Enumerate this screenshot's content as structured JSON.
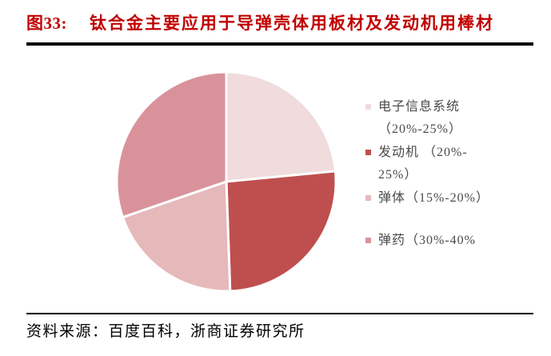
{
  "header": {
    "figure_label": "图33:",
    "title": "钛合金主要应用于导弹壳体用板材及发动机用棒材",
    "title_color": "#C00000"
  },
  "chart_data": {
    "type": "pie",
    "title": "钛合金主要应用于导弹壳体用板材及发动机用棒材",
    "legend_position": "right",
    "slices": [
      {
        "id": "electronic-info-system",
        "label": "电子信息系统",
        "share_range": "20%-25%",
        "start_angle": 0,
        "end_angle": 84.5,
        "color": "#F0DBDD"
      },
      {
        "id": "engine",
        "label": "发动机",
        "share_range": "20%-25%",
        "start_angle": 84.5,
        "end_angle": 178,
        "color": "#BF4F4F"
      },
      {
        "id": "missile-body",
        "label": "弹体",
        "share_range": "15%-20%",
        "start_angle": 178,
        "end_angle": 251,
        "color": "#E5B8BA"
      },
      {
        "id": "ammunition",
        "label": "弹药",
        "share_range": "30%-40%",
        "start_angle": 251,
        "end_angle": 360,
        "color": "#D9929A"
      }
    ]
  },
  "legend": {
    "items": [
      {
        "lines": [
          "电子信息系统",
          "（20%-25%）"
        ]
      },
      {
        "lines": [
          "发动机 （20%-",
          "25%）"
        ]
      },
      {
        "lines": [
          "弹体（15%-20%）"
        ]
      },
      {
        "lines": [
          "弹药（30%-40%"
        ]
      }
    ]
  },
  "footer": {
    "source_label": "资料来源：",
    "source_text": "百度百科，浙商证券研究所"
  }
}
